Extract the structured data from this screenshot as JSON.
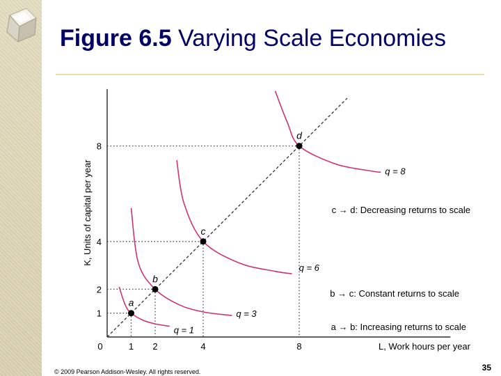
{
  "slide": {
    "title_bold": "Figure 6.5",
    "title_rest": " Varying Scale Economies",
    "footer": "© 2009 Pearson Addison-Wesley. All rights reserved.",
    "page_number": "35"
  },
  "colors": {
    "title": "#000066",
    "curve": "#cc3377",
    "sidebar": "#ddd5b5",
    "rule": "#e8dfae"
  },
  "chart_data": {
    "type": "line",
    "xlabel": "L, Work hours per year",
    "ylabel": "K, Units of capital per year",
    "origin_label": "0",
    "x_ticks": [
      1,
      2,
      4,
      8
    ],
    "y_ticks": [
      1,
      2,
      4,
      8
    ],
    "xlim": [
      0,
      14.3
    ],
    "ylim": [
      0,
      10.5
    ],
    "grid": false,
    "expansion_path": {
      "style": "dashed",
      "from": [
        0,
        0
      ],
      "to": [
        10,
        10
      ]
    },
    "points": [
      {
        "label": "a",
        "x": 1,
        "y": 1
      },
      {
        "label": "b",
        "x": 2,
        "y": 2
      },
      {
        "label": "c",
        "x": 4,
        "y": 4
      },
      {
        "label": "d",
        "x": 8,
        "y": 8
      }
    ],
    "isoquants": [
      {
        "label": "q = 1",
        "x": [
          0.5,
          0.75,
          1,
          1.5,
          2.0,
          2.6
        ],
        "y": [
          2.1,
          1.35,
          1.0,
          0.7,
          0.55,
          0.45
        ]
      },
      {
        "label": "q = 3",
        "x": [
          1.0,
          1.3,
          2.0,
          3.0,
          4.0,
          5.2
        ],
        "y": [
          5.4,
          3.1,
          2.0,
          1.35,
          1.05,
          0.9
        ]
      },
      {
        "label": "q = 6",
        "x": [
          2.9,
          3.2,
          4.0,
          5.5,
          7.0,
          7.7
        ],
        "y": [
          7.4,
          5.6,
          4.0,
          3.1,
          2.75,
          2.65
        ]
      },
      {
        "label": "q = 8",
        "x": [
          7.0,
          7.5,
          8.0,
          9.5,
          11.0,
          11.4
        ],
        "y": [
          10.3,
          9.0,
          8.0,
          7.25,
          6.95,
          6.9
        ]
      }
    ],
    "annotations": [
      {
        "text": "c → d: Decreasing returns to scale"
      },
      {
        "text": "b → c: Constant returns to scale"
      },
      {
        "text": "a → b: Increasing returns to scale"
      }
    ]
  }
}
